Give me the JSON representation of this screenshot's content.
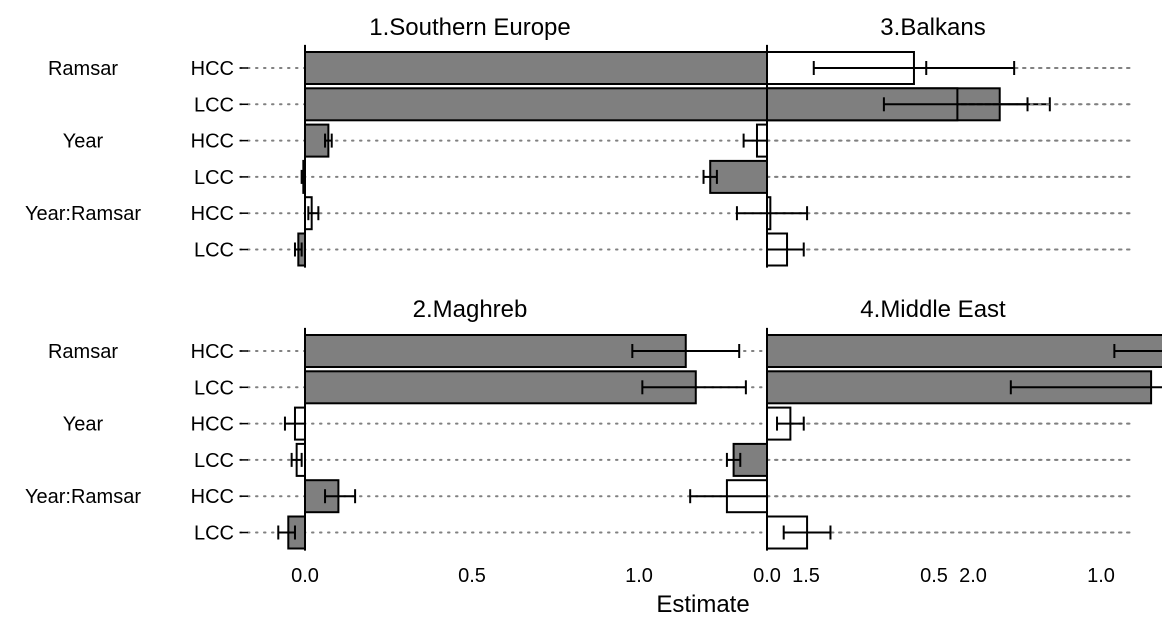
{
  "chart_data": {
    "type": "bar",
    "orientation": "horizontal",
    "xlabel": "Estimate",
    "group_labels": [
      "Ramsar",
      "Year",
      "Year:Ramsar"
    ],
    "row_labels": [
      "HCC",
      "LCC",
      "HCC",
      "LCC",
      "HCC",
      "LCC"
    ],
    "x_ticks": [
      "0.0",
      "0.5",
      "1.0",
      "1.5",
      "2.0"
    ],
    "xlim": [
      -0.25,
      2.25
    ],
    "legend": "none",
    "significance_fill": {
      "significant": "#7f7f7f",
      "not_significant": "#ffffff"
    },
    "panels": [
      {
        "title": "1.Southern Europe",
        "rows": [
          {
            "group": "Ramsar",
            "cc": "HCC",
            "estimate": 1.7,
            "low": 1.53,
            "high": 1.86,
            "significant": true
          },
          {
            "group": "Ramsar",
            "cc": "LCC",
            "estimate": 2.08,
            "low": 1.92,
            "high": 2.23,
            "significant": true
          },
          {
            "group": "Year",
            "cc": "HCC",
            "estimate": 0.07,
            "low": 0.06,
            "high": 0.08,
            "significant": true
          },
          {
            "group": "Year",
            "cc": "LCC",
            "estimate": -0.005,
            "low": -0.01,
            "high": 0.0,
            "significant": false
          },
          {
            "group": "Year:Ramsar",
            "cc": "HCC",
            "estimate": 0.02,
            "low": 0.01,
            "high": 0.04,
            "significant": false
          },
          {
            "group": "Year:Ramsar",
            "cc": "LCC",
            "estimate": -0.02,
            "low": -0.03,
            "high": -0.01,
            "significant": true
          }
        ]
      },
      {
        "title": "3.Balkans",
        "rows": [
          {
            "group": "Ramsar",
            "cc": "HCC",
            "estimate": 0.44,
            "low": 0.14,
            "high": 0.74,
            "significant": false
          },
          {
            "group": "Ramsar",
            "cc": "LCC",
            "estimate": 0.57,
            "low": 0.35,
            "high": 0.78,
            "significant": true
          },
          {
            "group": "Year",
            "cc": "HCC",
            "estimate": -0.03,
            "low": -0.07,
            "high": 0.0,
            "significant": false
          },
          {
            "group": "Year",
            "cc": "LCC",
            "estimate": -0.17,
            "low": -0.19,
            "high": -0.15,
            "significant": true
          },
          {
            "group": "Year:Ramsar",
            "cc": "HCC",
            "estimate": 0.01,
            "low": -0.09,
            "high": 0.12,
            "significant": false
          },
          {
            "group": "Year:Ramsar",
            "cc": "LCC",
            "estimate": 0.06,
            "low": 0.0,
            "high": 0.11,
            "significant": false
          }
        ]
      },
      {
        "title": "2.Maghreb",
        "rows": [
          {
            "group": "Ramsar",
            "cc": "HCC",
            "estimate": 1.14,
            "low": 0.98,
            "high": 1.3,
            "significant": true
          },
          {
            "group": "Ramsar",
            "cc": "LCC",
            "estimate": 1.17,
            "low": 1.01,
            "high": 1.32,
            "significant": true
          },
          {
            "group": "Year",
            "cc": "HCC",
            "estimate": -0.03,
            "low": -0.06,
            "high": 0.0,
            "significant": false
          },
          {
            "group": "Year",
            "cc": "LCC",
            "estimate": -0.025,
            "low": -0.04,
            "high": -0.01,
            "significant": false
          },
          {
            "group": "Year:Ramsar",
            "cc": "HCC",
            "estimate": 0.1,
            "low": 0.06,
            "high": 0.15,
            "significant": true
          },
          {
            "group": "Year:Ramsar",
            "cc": "LCC",
            "estimate": -0.05,
            "low": -0.08,
            "high": -0.03,
            "significant": true
          }
        ]
      },
      {
        "title": "4.Middle East",
        "rows": [
          {
            "group": "Ramsar",
            "cc": "HCC",
            "estimate": 1.54,
            "low": 1.04,
            "high": 2.04,
            "significant": true
          },
          {
            "group": "Ramsar",
            "cc": "LCC",
            "estimate": 1.15,
            "low": 0.73,
            "high": 1.58,
            "significant": true
          },
          {
            "group": "Year",
            "cc": "HCC",
            "estimate": 0.07,
            "low": 0.03,
            "high": 0.11,
            "significant": false
          },
          {
            "group": "Year",
            "cc": "LCC",
            "estimate": -0.1,
            "low": -0.12,
            "high": -0.08,
            "significant": true
          },
          {
            "group": "Year:Ramsar",
            "cc": "HCC",
            "estimate": -0.12,
            "low": -0.23,
            "high": 0.0,
            "significant": false
          },
          {
            "group": "Year:Ramsar",
            "cc": "LCC",
            "estimate": 0.12,
            "low": 0.05,
            "high": 0.19,
            "significant": false
          }
        ]
      }
    ]
  }
}
